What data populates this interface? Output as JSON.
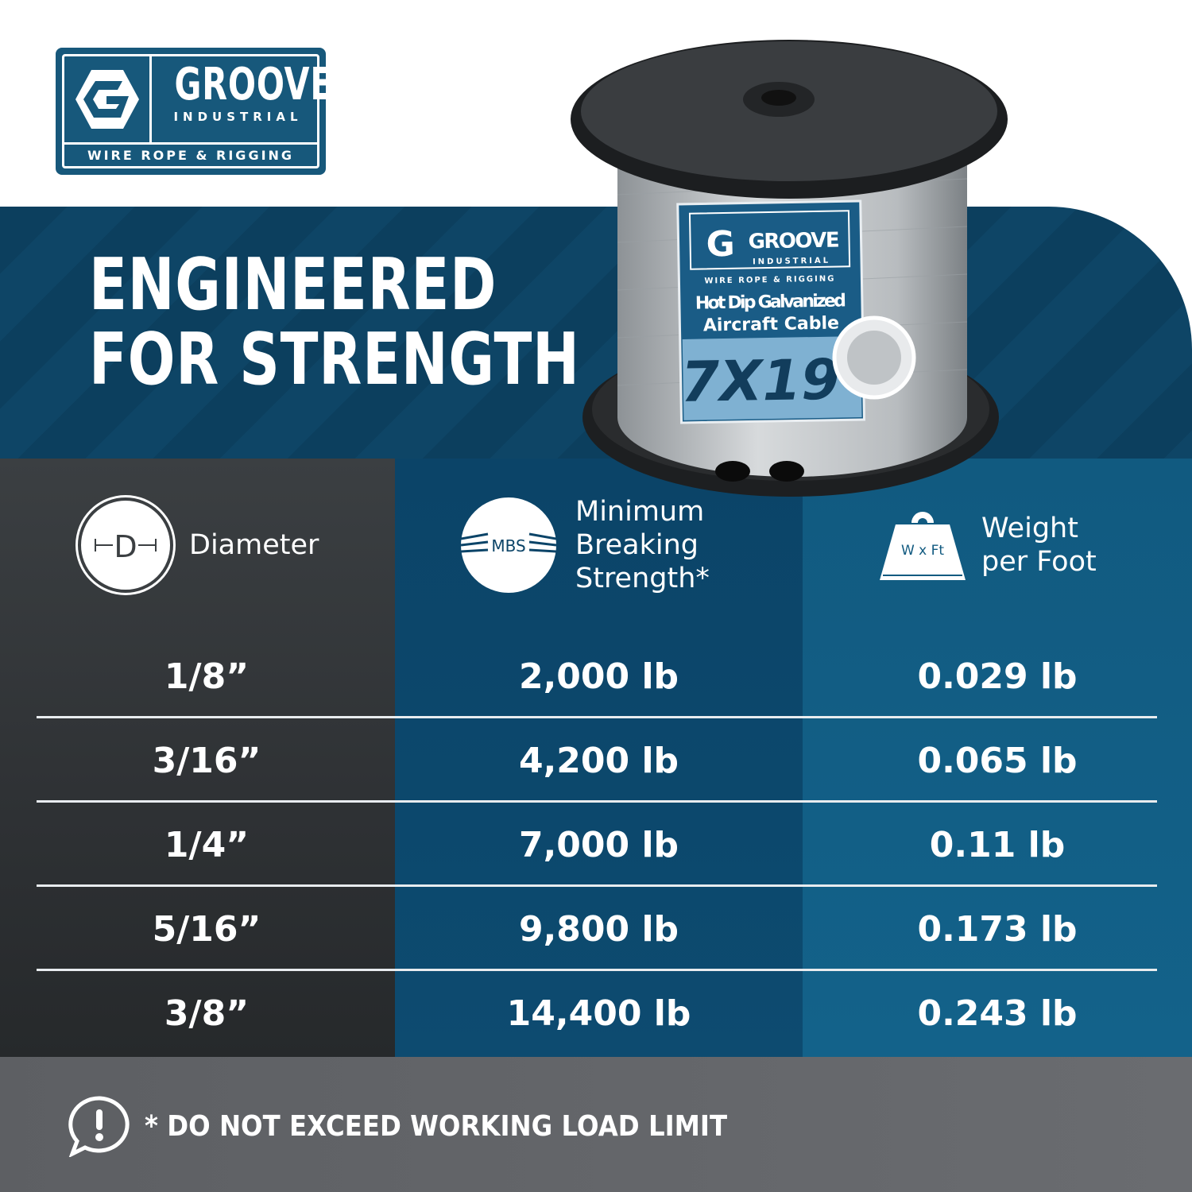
{
  "brand": {
    "name": "GROOVE",
    "sub": "INDUSTRIAL",
    "tagline": "WIRE ROPE & RIGGING"
  },
  "headline": {
    "line1": "ENGINEERED",
    "line2": "FOR STRENGTH"
  },
  "product_label": {
    "brand": "GROOVE",
    "sub": "INDUSTRIAL",
    "tagline": "WIRE ROPE & RIGGING",
    "line1": "Hot Dip Galvanized",
    "line2": "Aircraft Cable",
    "construction": "7X19"
  },
  "table": {
    "headers": [
      {
        "icon": "diameter-icon",
        "icon_text": "D",
        "label": "Diameter"
      },
      {
        "icon": "mbs-icon",
        "icon_text": "MBS",
        "label_lines": [
          "Minimum",
          "Breaking",
          "Strength*"
        ]
      },
      {
        "icon": "weight-icon",
        "icon_text": "W x Ft",
        "label_lines": [
          "Weight",
          "per Foot"
        ]
      }
    ],
    "rows": [
      {
        "diameter": "1/8”",
        "mbs": "2,000 lb",
        "weight": "0.029 lb"
      },
      {
        "diameter": "3/16”",
        "mbs": "4,200 lb",
        "weight": "0.065 lb"
      },
      {
        "diameter": "1/4”",
        "mbs": "7,000 lb",
        "weight": "0.11 lb"
      },
      {
        "diameter": "5/16”",
        "mbs": "9,800 lb",
        "weight": "0.173 lb"
      },
      {
        "diameter": "3/8”",
        "mbs": "14,400 lb",
        "weight": "0.243 lb"
      }
    ]
  },
  "footer": {
    "icon": "alert-icon",
    "warning": "* DO NOT EXCEED WORKING LOAD LIMIT"
  },
  "colors": {
    "brand_blue": "#17587b",
    "banner": "#0c3f5e",
    "col_dark": "#3b3f42",
    "col_mid": "#0b4468",
    "col_right": "#115a80",
    "footer": "#5d5f63"
  }
}
